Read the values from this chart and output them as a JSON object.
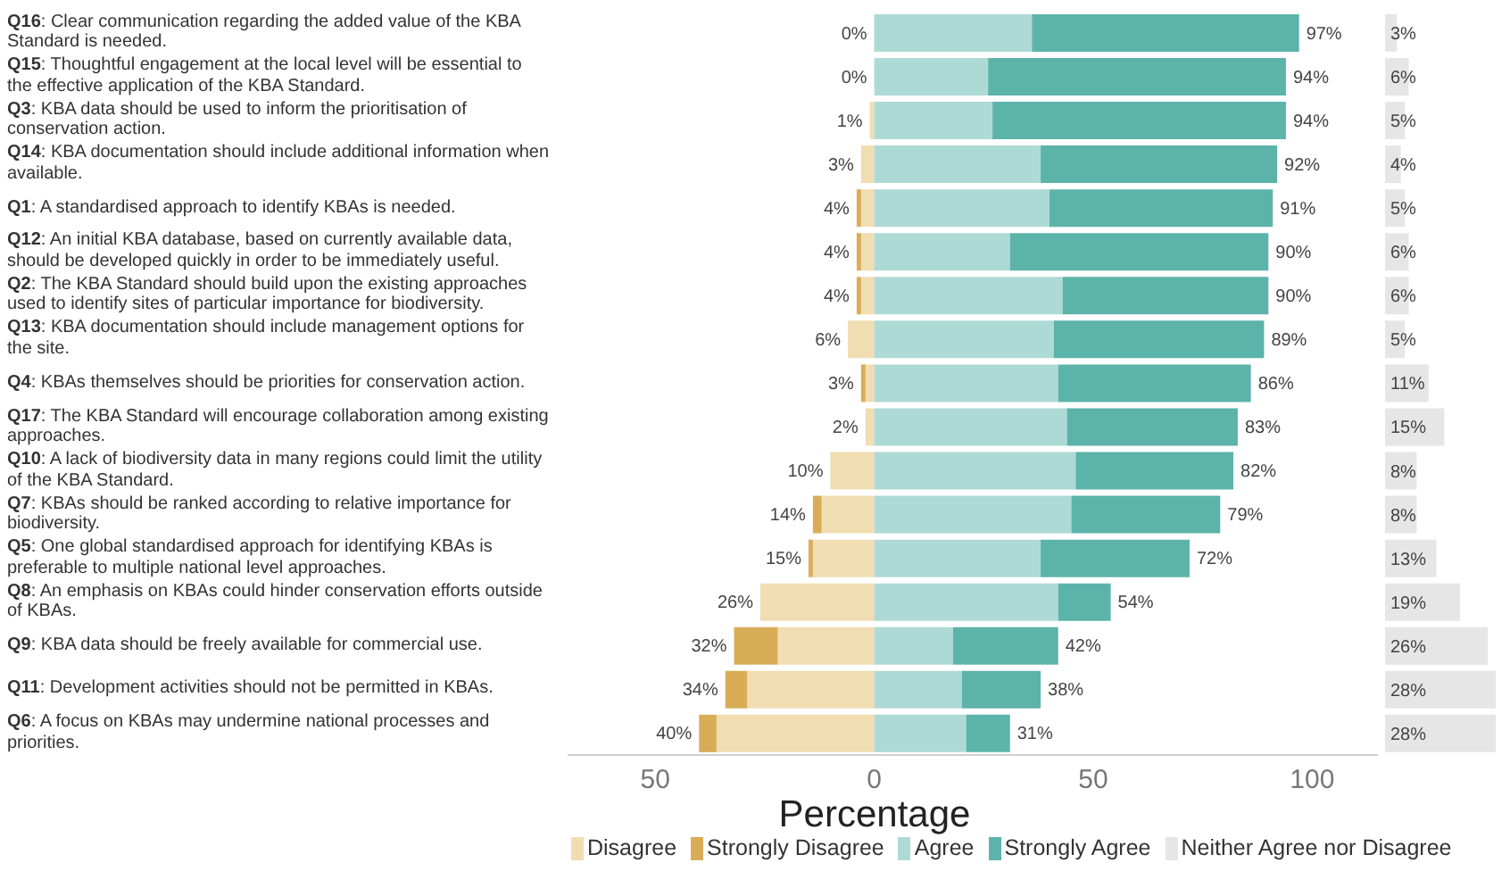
{
  "chart_data": [
    {
      "type": "bar",
      "orientation": "horizontal",
      "stacked": true,
      "xlabel": "Percentage",
      "legend": "bottom",
      "categories": [
        "Q16: Clear communication regarding the added value of the KBA Standard is needed.",
        "Q15: Thoughtful engagement at the local level will be essential to the effective application of the KBA Standard.",
        "Q3: KBA data should be used to inform the prioritisation of conservation action.",
        "Q14: KBA documentation should include additional information when available.",
        "Q1: A standardised approach to identify KBAs is needed.",
        "Q12: An initial KBA database, based on currently available data, should be developed quickly in order to be immediately useful.",
        "Q2: The KBA Standard should build upon the existing approaches used to identify sites of particular importance for biodiversity.",
        "Q13: KBA documentation should include management options for the site.",
        "Q4: KBAs themselves should be priorities for conservation action.",
        "Q17: The KBA Standard will encourage collaboration among existing approaches.",
        "Q10: A lack of biodiversity data in many regions could limit the utility of the KBA Standard.",
        "Q7: KBAs should be ranked according to relative importance for biodiversity.",
        "Q5: One global standardised approach for identifying KBAs is preferable to multiple national level approaches.",
        "Q8: An emphasis on KBAs could hinder conservation efforts outside of KBAs.",
        "Q9: KBA data should be freely available for commercial use.",
        "Q11: Development activities should not be permitted in KBAs.",
        "Q6: A focus on KBAs may undermine national processes and priorities."
      ],
      "series": [
        {
          "name": "Disagree",
          "color": "#f0ddb2",
          "values": [
            0,
            0,
            -1,
            -3,
            -3,
            -3,
            -3,
            -6,
            -2,
            -2,
            -10,
            -12,
            -14,
            -26,
            -22,
            -29,
            -36
          ]
        },
        {
          "name": "Strongly Disagree",
          "color": "#d9ad57",
          "values": [
            0,
            0,
            0,
            0,
            -1,
            -1,
            -1,
            0,
            -1,
            0,
            0,
            -2,
            -1,
            0,
            -10,
            -5,
            -4
          ]
        },
        {
          "name": "Agree",
          "color": "#aedad5",
          "values": [
            36,
            26,
            27,
            38,
            40,
            31,
            43,
            41,
            42,
            44,
            46,
            45,
            38,
            42,
            18,
            20,
            21
          ]
        },
        {
          "name": "Strongly Agree",
          "color": "#5cb3aa",
          "values": [
            61,
            68,
            67,
            54,
            51,
            59,
            47,
            48,
            44,
            39,
            36,
            34,
            34,
            12,
            24,
            18,
            10
          ]
        }
      ],
      "annotations": [
        {
          "text": "0%",
          "x": 0,
          "y": "Q16: Clear communication regarding the added value of the KBA Standard is needed."
        },
        {
          "text": "0%",
          "x": 0,
          "y": "Q15: Thoughtful engagement at the local level will be essential to the effective application of the KBA Standard."
        },
        {
          "text": "1%",
          "x": -1,
          "y": "Q3: KBA data should be used to inform the prioritisation of conservation action."
        },
        {
          "text": "3%",
          "x": -3,
          "y": "Q14: KBA documentation should include additional information when available."
        },
        {
          "text": "4%",
          "x": -4,
          "y": "Q1: A standardised approach to identify KBAs is needed."
        },
        {
          "text": "4%",
          "x": -4,
          "y": "Q12: An initial KBA database, based on currently available data, should be developed quickly in order to be immediately useful."
        },
        {
          "text": "4%",
          "x": -4,
          "y": "Q2: The KBA Standard should build upon the existing approaches used to identify sites of particular importance for biodiversity."
        },
        {
          "text": "6%",
          "x": -6,
          "y": "Q13: KBA documentation should include management options for the site."
        },
        {
          "text": "3%",
          "x": -3,
          "y": "Q4: KBAs themselves should be priorities for conservation action."
        },
        {
          "text": "2%",
          "x": -2,
          "y": "Q17: The KBA Standard will encourage collaboration among existing approaches."
        },
        {
          "text": "10%",
          "x": -10,
          "y": "Q10: A lack of biodiversity data in many regions could limit the utility of the KBA Standard."
        },
        {
          "text": "14%",
          "x": -14,
          "y": "Q7: KBAs should be ranked according to relative importance for biodiversity."
        },
        {
          "text": "15%",
          "x": -15,
          "y": "Q5: One global standardised approach for identifying KBAs is preferable to multiple national level approaches."
        },
        {
          "text": "26%",
          "x": -26,
          "y": "Q8: An emphasis on KBAs could hinder conservation efforts outside of KBAs."
        },
        {
          "text": "32%",
          "x": -32,
          "y": "Q9: KBA data should be freely available for commercial use."
        },
        {
          "text": "34%",
          "x": -34,
          "y": "Q11: Development activities should not be permitted in KBAs."
        },
        {
          "text": "40%",
          "x": -40,
          "y": "Q6: A focus on KBAs may undermine national processes and priorities."
        },
        {
          "text": "97%",
          "x": 97,
          "y": "Q16: Clear communication regarding the added value of the KBA Standard is needed."
        },
        {
          "text": "94%",
          "x": 94,
          "y": "Q15: Thoughtful engagement at the local level will be essential to the effective application of the KBA Standard."
        },
        {
          "text": "94%",
          "x": 94,
          "y": "Q3: KBA data should be used to inform the prioritisation of conservation action."
        },
        {
          "text": "92%",
          "x": 92,
          "y": "Q14: KBA documentation should include additional information when available."
        },
        {
          "text": "91%",
          "x": 91,
          "y": "Q1: A standardised approach to identify KBAs is needed."
        },
        {
          "text": "90%",
          "x": 90,
          "y": "Q12: An initial KBA database, based on currently available data, should be developed quickly in order to be immediately useful."
        },
        {
          "text": "90%",
          "x": 90,
          "y": "Q2: The KBA Standard should build upon the existing approaches used to identify sites of particular importance for biodiversity."
        },
        {
          "text": "89%",
          "x": 89,
          "y": "Q13: KBA documentation should include management options for the site."
        },
        {
          "text": "86%",
          "x": 86,
          "y": "Q4: KBAs themselves should be priorities for conservation action."
        },
        {
          "text": "83%",
          "x": 83,
          "y": "Q17: The KBA Standard will encourage collaboration among existing approaches."
        },
        {
          "text": "82%",
          "x": 82,
          "y": "Q10: A lack of biodiversity data in many regions could limit the utility of the KBA Standard."
        },
        {
          "text": "79%",
          "x": 79,
          "y": "Q7: KBAs should be ranked according to relative importance for biodiversity."
        },
        {
          "text": "72%",
          "x": 72,
          "y": "Q5: One global standardised approach for identifying KBAs is preferable to multiple national level approaches."
        },
        {
          "text": "54%",
          "x": 54,
          "y": "Q8: An emphasis on KBAs could hinder conservation efforts outside of KBAs."
        },
        {
          "text": "42%",
          "x": 42,
          "y": "Q9: KBA data should be freely available for commercial use."
        },
        {
          "text": "38%",
          "x": 38,
          "y": "Q11: Development activities should not be permitted in KBAs."
        },
        {
          "text": "31%",
          "x": 31,
          "y": "Q6: A focus on KBAs may undermine national processes and priorities."
        }
      ],
      "xlim": [
        -70,
        115
      ],
      "xticks": [
        {
          "value": -50,
          "label": "50"
        },
        0,
        50,
        100
      ]
    },
    {
      "type": "bar",
      "orientation": "horizontal",
      "legend": "bottom",
      "categories": [
        null,
        null,
        null,
        null,
        null,
        null,
        null,
        null,
        null,
        null,
        null,
        null,
        null,
        null,
        null,
        null,
        null
      ],
      "series": [
        {
          "name": "Neither Agree nor Disagree",
          "color": "#e6e6e6",
          "values": [
            3,
            6,
            5,
            4,
            5,
            6,
            6,
            5,
            11,
            15,
            8,
            8,
            13,
            19,
            26,
            28,
            28
          ],
          "value_labels": [
            "3%",
            "6%",
            "5%",
            "4%",
            "5%",
            "6%",
            "6%",
            "5%",
            "11%",
            "15%",
            "8%",
            "8%",
            "13%",
            "19%",
            "26%",
            "28%",
            "28%"
          ]
        }
      ]
    }
  ]
}
